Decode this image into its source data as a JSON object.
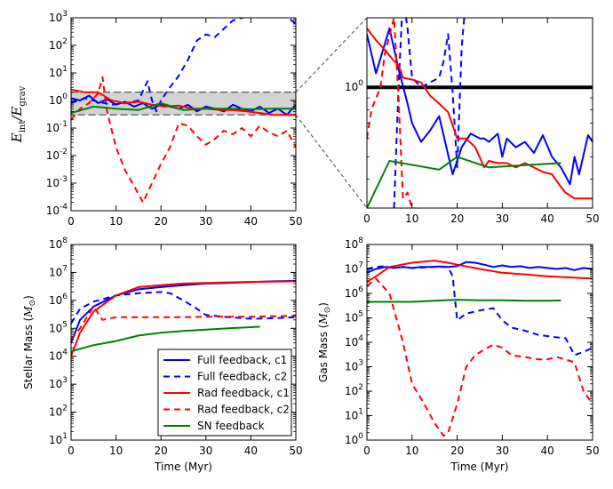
{
  "colors": {
    "full": "#0000ff",
    "rad": "#ff0000",
    "sn": "#008000",
    "band": "#808080",
    "hline": "#000000"
  },
  "chart_data": [
    {
      "id": "p1",
      "type": "line",
      "yscale": "log",
      "xlim": [
        0,
        50
      ],
      "ylim": [
        0.0001,
        1000
      ],
      "xticks": [
        "0",
        "10",
        "20",
        "30",
        "40",
        "50"
      ],
      "yticks": [
        {
          "base": "10",
          "exp": "-4"
        },
        {
          "base": "10",
          "exp": "-3"
        },
        {
          "base": "10",
          "exp": "-2"
        },
        {
          "base": "10",
          "exp": "-1"
        },
        {
          "base": "10",
          "exp": "0"
        },
        {
          "base": "10",
          "exp": "1"
        },
        {
          "base": "10",
          "exp": "2"
        },
        {
          "base": "10",
          "exp": "3"
        }
      ],
      "ylabel_parts": {
        "e": "E",
        "int": "int",
        "slash": "/",
        "e2": "E",
        "grav": "grav"
      },
      "band": [
        0.3,
        2.0
      ],
      "series": [
        {
          "name": "Full feedback, c1",
          "style": "full",
          "x": [
            0,
            2,
            4,
            6,
            8,
            10,
            12,
            14,
            16,
            18,
            20,
            22,
            24,
            26,
            28,
            30,
            32,
            34,
            36,
            38,
            40,
            42,
            44,
            46,
            48,
            50
          ],
          "y": [
            1.2,
            1.0,
            1.5,
            0.8,
            1.1,
            0.7,
            0.9,
            0.6,
            0.8,
            0.5,
            0.7,
            0.6,
            0.5,
            0.7,
            0.4,
            0.6,
            0.5,
            0.4,
            0.7,
            0.5,
            0.4,
            0.6,
            0.35,
            0.5,
            0.3,
            0.7
          ]
        },
        {
          "name": "Full feedback, c2",
          "style": "full-dash",
          "x": [
            0,
            3,
            6,
            9,
            12,
            15,
            17,
            18,
            19,
            20,
            22,
            24,
            26,
            28,
            30,
            32,
            34,
            36,
            38,
            40,
            42,
            44,
            46,
            48,
            50
          ],
          "y": [
            0.8,
            1.2,
            0.9,
            0.7,
            0.8,
            1.0,
            5.0,
            1.0,
            0.4,
            1.0,
            3.0,
            8.0,
            30,
            150,
            250,
            200,
            400,
            800,
            1000,
            1300,
            1200,
            1000,
            1300,
            1100,
            600
          ]
        },
        {
          "name": "Rad feedback, c1",
          "style": "rad",
          "x": [
            0,
            3,
            6,
            9,
            12,
            15,
            18,
            21,
            24,
            27,
            30,
            33,
            36,
            39,
            42,
            45,
            48,
            50
          ],
          "y": [
            2.5,
            2.0,
            2.0,
            1.0,
            0.8,
            0.9,
            0.7,
            0.6,
            0.65,
            0.5,
            0.5,
            0.45,
            0.45,
            0.4,
            0.35,
            0.3,
            0.3,
            0.3
          ]
        },
        {
          "name": "Rad feedback, c2",
          "style": "rad-dash",
          "x": [
            0,
            2,
            4,
            6,
            7,
            8,
            10,
            12,
            14,
            16,
            18,
            20,
            22,
            24,
            26,
            28,
            30,
            32,
            34,
            36,
            38,
            40,
            42,
            44,
            46,
            48,
            50
          ],
          "y": [
            0.2,
            0.5,
            0.8,
            1.8,
            7.0,
            0.4,
            0.02,
            0.003,
            0.0008,
            0.0002,
            0.001,
            0.005,
            0.02,
            0.15,
            0.12,
            0.05,
            0.025,
            0.04,
            0.08,
            0.06,
            0.1,
            0.05,
            0.12,
            0.07,
            0.05,
            0.08,
            0.02
          ]
        },
        {
          "name": "SN feedback",
          "style": "sn",
          "x": [
            0,
            5,
            10,
            15,
            20,
            25,
            30,
            35,
            40,
            45,
            50
          ],
          "y": [
            0.35,
            0.6,
            0.5,
            0.45,
            0.8,
            0.45,
            0.5,
            0.5,
            0.48,
            0.5,
            0.5
          ]
        }
      ]
    },
    {
      "id": "p2",
      "type": "line",
      "yscale": "log",
      "xlim": [
        0,
        50
      ],
      "ylim": [
        0.3,
        2.0
      ],
      "xticks": [
        "0",
        "10",
        "20",
        "30",
        "40",
        "50"
      ],
      "yticks": [
        {
          "base": "10",
          "exp": "0"
        }
      ],
      "hline": 1.0,
      "series": [
        {
          "name": "Full feedback, c1",
          "style": "full",
          "x": [
            0,
            2,
            5,
            7,
            9,
            10,
            12,
            14,
            16,
            19,
            21,
            23,
            25,
            26,
            27,
            29,
            30,
            31,
            33,
            35,
            37,
            39,
            41,
            43,
            45,
            46,
            47,
            49,
            50
          ],
          "y": [
            1.7,
            1.15,
            1.8,
            1.2,
            0.85,
            0.7,
            0.58,
            0.65,
            0.75,
            0.42,
            0.55,
            0.63,
            0.6,
            0.6,
            0.58,
            0.63,
            0.5,
            0.6,
            0.55,
            0.58,
            0.52,
            0.62,
            0.5,
            0.45,
            0.38,
            0.5,
            0.42,
            0.62,
            0.58
          ]
        },
        {
          "name": "Full feedback, c2",
          "style": "full-dash",
          "x": [
            6,
            7,
            8,
            9,
            10,
            12,
            14,
            16,
            17,
            18,
            19,
            20,
            21,
            22
          ],
          "y": [
            0.3,
            1.0,
            2.5,
            1.8,
            1.1,
            1.0,
            1.05,
            1.1,
            1.3,
            1.7,
            0.95,
            0.45,
            1.5,
            2.5
          ]
        },
        {
          "name": "Rad feedback, c1",
          "style": "rad",
          "x": [
            0,
            2,
            4,
            6,
            7,
            8,
            10,
            12,
            14,
            16,
            18,
            20,
            22,
            24,
            26,
            27,
            29,
            31,
            33,
            35,
            37,
            39,
            41,
            43,
            44,
            45,
            46,
            48,
            50
          ],
          "y": [
            1.8,
            1.6,
            1.45,
            1.3,
            1.25,
            1.1,
            1.08,
            1.05,
            0.92,
            0.85,
            0.78,
            0.6,
            0.6,
            0.55,
            0.45,
            0.48,
            0.47,
            0.47,
            0.45,
            0.47,
            0.45,
            0.43,
            0.42,
            0.37,
            0.35,
            0.34,
            0.33,
            0.33,
            0.33
          ]
        },
        {
          "name": "Rad feedback, c2",
          "style": "rad-dash",
          "x": [
            0,
            1,
            3,
            4,
            6,
            7,
            8,
            9,
            10
          ],
          "y": [
            0.6,
            0.8,
            1.0,
            1.4,
            2.0,
            0.9,
            0.33,
            0.35,
            0.3
          ]
        },
        {
          "name": "SN feedback",
          "style": "sn",
          "x": [
            0,
            5,
            16,
            20,
            27,
            35,
            43
          ],
          "y": [
            0.3,
            0.48,
            0.44,
            0.5,
            0.45,
            0.46,
            0.47
          ]
        }
      ]
    },
    {
      "id": "p3",
      "type": "line",
      "yscale": "log",
      "xlim": [
        0,
        50
      ],
      "ylim": [
        10,
        100000000
      ],
      "xticks": [
        "0",
        "10",
        "20",
        "30",
        "40",
        "50"
      ],
      "yticks": [
        {
          "base": "10",
          "exp": "1"
        },
        {
          "base": "10",
          "exp": "2"
        },
        {
          "base": "10",
          "exp": "3"
        },
        {
          "base": "10",
          "exp": "4"
        },
        {
          "base": "10",
          "exp": "5"
        },
        {
          "base": "10",
          "exp": "6"
        },
        {
          "base": "10",
          "exp": "7"
        },
        {
          "base": "10",
          "exp": "8"
        }
      ],
      "xlabel": "Time (Myr)",
      "ylabel_parts": {
        "prefix": "Stellar Mass (",
        "m": "M",
        "sun": "⊙",
        "suffix": ")"
      },
      "series": [
        {
          "name": "Full feedback, c1",
          "style": "full",
          "x": [
            0,
            2,
            5,
            10,
            15,
            20,
            25,
            30,
            35,
            40,
            45,
            50
          ],
          "y": [
            30000,
            200000,
            600000,
            1500000,
            2500000,
            3000000,
            3500000,
            4000000,
            4200000,
            4500000,
            4800000,
            5000000
          ]
        },
        {
          "name": "Full feedback, c2",
          "style": "full-dash",
          "x": [
            0,
            2,
            5,
            10,
            15,
            20,
            22,
            25,
            28,
            30,
            35,
            40,
            45,
            50
          ],
          "y": [
            150000,
            500000,
            900000,
            1500000,
            1800000,
            2000000,
            1800000,
            1000000,
            500000,
            300000,
            250000,
            220000,
            230000,
            250000
          ]
        },
        {
          "name": "Rad feedback, c1",
          "style": "rad",
          "x": [
            0,
            2,
            5,
            10,
            15,
            20,
            25,
            30,
            35,
            40,
            45,
            50
          ],
          "y": [
            10000,
            70000,
            400000,
            1500000,
            3000000,
            3500000,
            4000000,
            4200000,
            4400000,
            4600000,
            4700000,
            4800000
          ]
        },
        {
          "name": "Rad feedback, c2",
          "style": "rad-dash",
          "x": [
            0,
            2,
            5,
            7,
            10,
            15,
            20,
            25,
            30,
            35,
            40,
            45,
            50
          ],
          "y": [
            40000,
            100000,
            600000,
            200000,
            250000,
            250000,
            250000,
            250000,
            260000,
            260000,
            260000,
            270000,
            280000
          ]
        },
        {
          "name": "SN feedback",
          "style": "sn",
          "x": [
            0,
            5,
            10,
            15,
            20,
            25,
            30,
            35,
            40,
            42
          ],
          "y": [
            15000,
            25000,
            35000,
            55000,
            70000,
            80000,
            90000,
            100000,
            110000,
            115000
          ]
        }
      ],
      "legend": {
        "placement": "lower-right",
        "entries": [
          {
            "label": "Full feedback, c1",
            "style": "full"
          },
          {
            "label": "Full feedback, c2",
            "style": "full-dash"
          },
          {
            "label": "Rad feedback, c1",
            "style": "rad"
          },
          {
            "label": "Rad feedback, c2",
            "style": "rad-dash"
          },
          {
            "label": "SN feedback",
            "style": "sn"
          }
        ]
      }
    },
    {
      "id": "p4",
      "type": "line",
      "yscale": "log",
      "xlim": [
        0,
        50
      ],
      "ylim": [
        1,
        100000000
      ],
      "xticks": [
        "0",
        "10",
        "20",
        "30",
        "40",
        "50"
      ],
      "yticks": [
        {
          "base": "10",
          "exp": "0"
        },
        {
          "base": "10",
          "exp": "1"
        },
        {
          "base": "10",
          "exp": "2"
        },
        {
          "base": "10",
          "exp": "3"
        },
        {
          "base": "10",
          "exp": "4"
        },
        {
          "base": "10",
          "exp": "5"
        },
        {
          "base": "10",
          "exp": "6"
        },
        {
          "base": "10",
          "exp": "7"
        },
        {
          "base": "10",
          "exp": "8"
        }
      ],
      "xlabel": "Time (Myr)",
      "ylabel_parts": {
        "prefix": "Gas Mass (",
        "m": "M",
        "sun": "⊙",
        "suffix": ")"
      },
      "series": [
        {
          "name": "Full feedback, c1",
          "style": "full",
          "x": [
            0,
            2,
            4,
            6,
            8,
            10,
            12,
            14,
            16,
            18,
            20,
            22,
            24,
            26,
            28,
            30,
            32,
            34,
            36,
            38,
            40,
            42,
            44,
            46,
            48,
            50
          ],
          "y": [
            7000000,
            10000000,
            12000000,
            11000000,
            12000000,
            11000000,
            12000000,
            12000000,
            12500000,
            12000000,
            13000000,
            19000000,
            18000000,
            15000000,
            12000000,
            14000000,
            12000000,
            13000000,
            11000000,
            12000000,
            11000000,
            10000000,
            11000000,
            9000000,
            11000000,
            10000000
          ]
        },
        {
          "name": "Full feedback, c2",
          "style": "full-dash",
          "x": [
            0,
            2,
            4,
            6,
            8,
            10,
            15,
            18,
            19,
            20,
            22,
            25,
            28,
            30,
            32,
            35,
            38,
            40,
            42,
            44,
            46,
            48,
            50
          ],
          "y": [
            10000000,
            12000000,
            13000000,
            11000000,
            12000000,
            11000000,
            12000000,
            12000000,
            5000000,
            80000,
            150000,
            200000,
            250000,
            80000,
            40000,
            30000,
            20000,
            18000,
            16000,
            15000,
            3000,
            4000,
            6000
          ]
        },
        {
          "name": "Rad feedback, c1",
          "style": "rad",
          "x": [
            0,
            2,
            5,
            10,
            15,
            18,
            20,
            25,
            30,
            35,
            40,
            45,
            50
          ],
          "y": [
            3000000,
            5000000,
            12000000,
            18000000,
            22000000,
            18000000,
            15000000,
            10000000,
            7000000,
            6000000,
            5000000,
            4500000,
            4000000
          ]
        },
        {
          "name": "Rad feedback, c2",
          "style": "rad-dash",
          "x": [
            0,
            2,
            5,
            8,
            10,
            12,
            15,
            17,
            18,
            20,
            22,
            24,
            26,
            28,
            30,
            32,
            35,
            38,
            40,
            42,
            44,
            46,
            48,
            50
          ],
          "y": [
            2000000,
            4000000,
            1000000,
            10000,
            200,
            50,
            5,
            1.5,
            2,
            30,
            1000,
            3000,
            5000,
            8000,
            6000,
            3000,
            2500,
            2000,
            2000,
            2500,
            2000,
            1500,
            100,
            30
          ]
        },
        {
          "name": "SN feedback",
          "style": "sn",
          "x": [
            0,
            5,
            10,
            15,
            20,
            25,
            30,
            35,
            40,
            43
          ],
          "y": [
            450000,
            450000,
            450000,
            500000,
            550000,
            520000,
            520000,
            500000,
            500000,
            510000
          ]
        }
      ]
    }
  ]
}
